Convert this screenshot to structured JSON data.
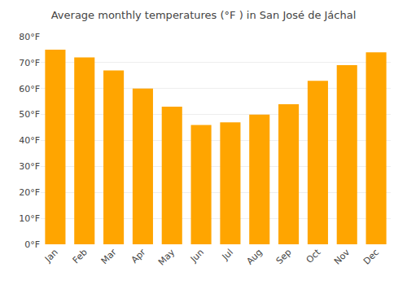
{
  "chart_data": {
    "type": "bar",
    "title": "Average monthly temperatures (°F ) in San José de Jáchal",
    "categories": [
      "Jan",
      "Feb",
      "Mar",
      "Apr",
      "May",
      "Jun",
      "Jul",
      "Aug",
      "Sep",
      "Oct",
      "Nov",
      "Dec"
    ],
    "values": [
      75,
      72,
      67,
      60,
      53,
      46,
      47,
      50,
      54,
      63,
      69,
      74
    ],
    "color": "#FFA500",
    "ylim": [
      0,
      80
    ],
    "yticks": [
      {
        "value": 0,
        "label": "0°F"
      },
      {
        "value": 10,
        "label": "10°F"
      },
      {
        "value": 20,
        "label": "20°F"
      },
      {
        "value": 30,
        "label": "30°F"
      },
      {
        "value": 40,
        "label": "40°F"
      },
      {
        "value": 50,
        "label": "50°F"
      },
      {
        "value": 60,
        "label": "60°F"
      },
      {
        "value": 70,
        "label": "70°F"
      },
      {
        "value": 80,
        "label": "80°F"
      }
    ],
    "grid": true
  }
}
